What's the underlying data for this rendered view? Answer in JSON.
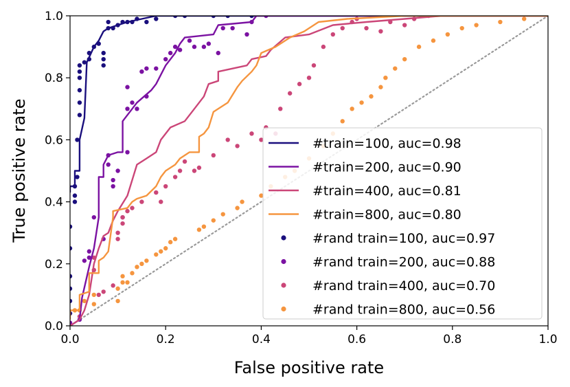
{
  "chart_data": {
    "type": "line",
    "title": "",
    "xlabel": "False positive rate",
    "ylabel": "True positive rate",
    "xlim": [
      0.0,
      1.0
    ],
    "ylim": [
      0.0,
      1.0
    ],
    "x_ticks": [
      "0.0",
      "0.2",
      "0.4",
      "0.6",
      "0.8",
      "1.0"
    ],
    "y_ticks": [
      "0.0",
      "0.2",
      "0.4",
      "0.6",
      "0.8",
      "1.0"
    ],
    "grid": false,
    "legend_position": "lower-right",
    "diagonal": {
      "style": "dotted",
      "color": "#999999",
      "points": [
        [
          0,
          0
        ],
        [
          1,
          1
        ]
      ]
    },
    "series": [
      {
        "name": "#train=100, auc=0.98",
        "kind": "line",
        "color": "#1a0f7d",
        "points": [
          [
            0.0,
            0.43
          ],
          [
            0.0,
            0.45
          ],
          [
            0.01,
            0.45
          ],
          [
            0.01,
            0.5
          ],
          [
            0.02,
            0.5
          ],
          [
            0.02,
            0.6
          ],
          [
            0.03,
            0.67
          ],
          [
            0.035,
            0.85
          ],
          [
            0.05,
            0.9
          ],
          [
            0.06,
            0.92
          ],
          [
            0.07,
            0.95
          ],
          [
            0.08,
            0.96
          ],
          [
            0.1,
            0.97
          ],
          [
            0.12,
            0.98
          ],
          [
            0.15,
            0.99
          ],
          [
            0.18,
            1.0
          ],
          [
            1.0,
            1.0
          ]
        ]
      },
      {
        "name": "#train=200, auc=0.90",
        "kind": "line",
        "color": "#7b12a2",
        "points": [
          [
            0.0,
            0.0
          ],
          [
            0.02,
            0.02
          ],
          [
            0.025,
            0.09
          ],
          [
            0.04,
            0.19
          ],
          [
            0.05,
            0.25
          ],
          [
            0.06,
            0.35
          ],
          [
            0.06,
            0.48
          ],
          [
            0.07,
            0.48
          ],
          [
            0.07,
            0.52
          ],
          [
            0.08,
            0.55
          ],
          [
            0.1,
            0.56
          ],
          [
            0.11,
            0.56
          ],
          [
            0.11,
            0.66
          ],
          [
            0.13,
            0.7
          ],
          [
            0.14,
            0.72
          ],
          [
            0.17,
            0.76
          ],
          [
            0.18,
            0.78
          ],
          [
            0.2,
            0.84
          ],
          [
            0.22,
            0.88
          ],
          [
            0.23,
            0.91
          ],
          [
            0.24,
            0.93
          ],
          [
            0.3,
            0.94
          ],
          [
            0.31,
            0.97
          ],
          [
            0.38,
            0.98
          ],
          [
            0.39,
            1.0
          ],
          [
            1.0,
            1.0
          ]
        ]
      },
      {
        "name": "#train=400, auc=0.81",
        "kind": "line",
        "color": "#cb4678",
        "points": [
          [
            0.0,
            0.0
          ],
          [
            0.02,
            0.02
          ],
          [
            0.03,
            0.05
          ],
          [
            0.04,
            0.1
          ],
          [
            0.05,
            0.2
          ],
          [
            0.06,
            0.25
          ],
          [
            0.07,
            0.29
          ],
          [
            0.08,
            0.3
          ],
          [
            0.09,
            0.34
          ],
          [
            0.1,
            0.37
          ],
          [
            0.12,
            0.42
          ],
          [
            0.14,
            0.52
          ],
          [
            0.16,
            0.54
          ],
          [
            0.18,
            0.56
          ],
          [
            0.19,
            0.6
          ],
          [
            0.21,
            0.64
          ],
          [
            0.24,
            0.66
          ],
          [
            0.26,
            0.7
          ],
          [
            0.28,
            0.74
          ],
          [
            0.29,
            0.78
          ],
          [
            0.31,
            0.79
          ],
          [
            0.31,
            0.82
          ],
          [
            0.34,
            0.83
          ],
          [
            0.37,
            0.84
          ],
          [
            0.38,
            0.86
          ],
          [
            0.41,
            0.87
          ],
          [
            0.42,
            0.89
          ],
          [
            0.45,
            0.93
          ],
          [
            0.5,
            0.94
          ],
          [
            0.55,
            0.97
          ],
          [
            0.62,
            0.98
          ],
          [
            0.7,
            0.99
          ],
          [
            0.78,
            1.0
          ],
          [
            1.0,
            1.0
          ]
        ]
      },
      {
        "name": "#train=800, auc=0.80",
        "kind": "line",
        "color": "#f5953f",
        "points": [
          [
            0.0,
            0.02
          ],
          [
            0.0,
            0.05
          ],
          [
            0.02,
            0.05
          ],
          [
            0.02,
            0.1
          ],
          [
            0.04,
            0.11
          ],
          [
            0.04,
            0.17
          ],
          [
            0.06,
            0.17
          ],
          [
            0.06,
            0.21
          ],
          [
            0.07,
            0.22
          ],
          [
            0.08,
            0.24
          ],
          [
            0.09,
            0.35
          ],
          [
            0.09,
            0.37
          ],
          [
            0.12,
            0.38
          ],
          [
            0.13,
            0.4
          ],
          [
            0.14,
            0.41
          ],
          [
            0.16,
            0.42
          ],
          [
            0.18,
            0.45
          ],
          [
            0.19,
            0.48
          ],
          [
            0.2,
            0.5
          ],
          [
            0.22,
            0.52
          ],
          [
            0.23,
            0.54
          ],
          [
            0.25,
            0.56
          ],
          [
            0.27,
            0.56
          ],
          [
            0.27,
            0.61
          ],
          [
            0.28,
            0.62
          ],
          [
            0.29,
            0.64
          ],
          [
            0.3,
            0.69
          ],
          [
            0.33,
            0.72
          ],
          [
            0.35,
            0.77
          ],
          [
            0.36,
            0.79
          ],
          [
            0.38,
            0.82
          ],
          [
            0.39,
            0.84
          ],
          [
            0.4,
            0.88
          ],
          [
            0.43,
            0.9
          ],
          [
            0.46,
            0.93
          ],
          [
            0.49,
            0.95
          ],
          [
            0.52,
            0.98
          ],
          [
            0.58,
            0.99
          ],
          [
            0.7,
            1.0
          ],
          [
            1.0,
            1.0
          ]
        ]
      },
      {
        "name": "#rand train=100, auc=0.97",
        "kind": "scatter",
        "color": "#1a0f7d",
        "points": [
          [
            0.0,
            0.0
          ],
          [
            0.0,
            0.04
          ],
          [
            0.0,
            0.08
          ],
          [
            0.0,
            0.12
          ],
          [
            0.0,
            0.16
          ],
          [
            0.0,
            0.25
          ],
          [
            0.0,
            0.32
          ],
          [
            0.01,
            0.4
          ],
          [
            0.01,
            0.42
          ],
          [
            0.01,
            0.45
          ],
          [
            0.015,
            0.48
          ],
          [
            0.015,
            0.6
          ],
          [
            0.02,
            0.68
          ],
          [
            0.02,
            0.72
          ],
          [
            0.02,
            0.76
          ],
          [
            0.02,
            0.8
          ],
          [
            0.02,
            0.82
          ],
          [
            0.02,
            0.84
          ],
          [
            0.03,
            0.85
          ],
          [
            0.04,
            0.86
          ],
          [
            0.04,
            0.88
          ],
          [
            0.05,
            0.9
          ],
          [
            0.06,
            0.91
          ],
          [
            0.07,
            0.84
          ],
          [
            0.07,
            0.86
          ],
          [
            0.07,
            0.88
          ],
          [
            0.08,
            0.96
          ],
          [
            0.08,
            0.98
          ],
          [
            0.09,
            0.96
          ],
          [
            0.1,
            0.97
          ],
          [
            0.11,
            0.98
          ],
          [
            0.12,
            0.98
          ],
          [
            0.13,
            0.98
          ],
          [
            0.14,
            0.99
          ],
          [
            0.16,
            0.98
          ],
          [
            0.18,
            0.99
          ],
          [
            0.22,
            1.0
          ],
          [
            0.24,
            1.0
          ],
          [
            0.3,
            1.0
          ],
          [
            0.33,
            1.0
          ],
          [
            0.38,
            1.0
          ]
        ]
      },
      {
        "name": "#rand train=200, auc=0.88",
        "kind": "scatter",
        "color": "#7b12a2",
        "points": [
          [
            0.0,
            0.01
          ],
          [
            0.02,
            0.02
          ],
          [
            0.03,
            0.21
          ],
          [
            0.04,
            0.22
          ],
          [
            0.04,
            0.24
          ],
          [
            0.05,
            0.35
          ],
          [
            0.07,
            0.28
          ],
          [
            0.08,
            0.52
          ],
          [
            0.08,
            0.55
          ],
          [
            0.09,
            0.45
          ],
          [
            0.09,
            0.47
          ],
          [
            0.1,
            0.5
          ],
          [
            0.11,
            0.35
          ],
          [
            0.12,
            0.56
          ],
          [
            0.12,
            0.7
          ],
          [
            0.12,
            0.77
          ],
          [
            0.13,
            0.72
          ],
          [
            0.14,
            0.7
          ],
          [
            0.15,
            0.82
          ],
          [
            0.16,
            0.74
          ],
          [
            0.16,
            0.83
          ],
          [
            0.18,
            0.83
          ],
          [
            0.2,
            0.86
          ],
          [
            0.21,
            0.88
          ],
          [
            0.22,
            0.9
          ],
          [
            0.23,
            0.89
          ],
          [
            0.25,
            0.92
          ],
          [
            0.26,
            0.9
          ],
          [
            0.28,
            0.9
          ],
          [
            0.29,
            0.91
          ],
          [
            0.31,
            0.88
          ],
          [
            0.32,
            0.96
          ],
          [
            0.34,
            0.96
          ],
          [
            0.37,
            0.94
          ],
          [
            0.38,
            0.98
          ],
          [
            0.41,
            1.0
          ]
        ]
      },
      {
        "name": "#rand train=400, auc=0.70",
        "kind": "scatter",
        "color": "#cb4678",
        "points": [
          [
            0.02,
            0.03
          ],
          [
            0.05,
            0.22
          ],
          [
            0.05,
            0.18
          ],
          [
            0.06,
            0.1
          ],
          [
            0.07,
            0.11
          ],
          [
            0.09,
            0.13
          ],
          [
            0.1,
            0.28
          ],
          [
            0.1,
            0.3
          ],
          [
            0.11,
            0.33
          ],
          [
            0.11,
            0.35
          ],
          [
            0.12,
            0.37
          ],
          [
            0.13,
            0.38
          ],
          [
            0.15,
            0.4
          ],
          [
            0.18,
            0.43
          ],
          [
            0.19,
            0.4
          ],
          [
            0.2,
            0.45
          ],
          [
            0.22,
            0.48
          ],
          [
            0.23,
            0.5
          ],
          [
            0.24,
            0.53
          ],
          [
            0.26,
            0.5
          ],
          [
            0.27,
            0.51
          ],
          [
            0.3,
            0.55
          ],
          [
            0.33,
            0.6
          ],
          [
            0.35,
            0.58
          ],
          [
            0.38,
            0.62
          ],
          [
            0.4,
            0.6
          ],
          [
            0.41,
            0.64
          ],
          [
            0.43,
            0.62
          ],
          [
            0.44,
            0.7
          ],
          [
            0.46,
            0.75
          ],
          [
            0.48,
            0.78
          ],
          [
            0.5,
            0.8
          ],
          [
            0.51,
            0.84
          ],
          [
            0.53,
            0.9
          ],
          [
            0.55,
            0.94
          ],
          [
            0.57,
            0.96
          ],
          [
            0.59,
            0.98
          ],
          [
            0.6,
            0.99
          ],
          [
            0.62,
            0.96
          ],
          [
            0.65,
            0.95
          ],
          [
            0.67,
            0.98
          ],
          [
            0.7,
            0.97
          ],
          [
            0.72,
            0.99
          ],
          [
            0.75,
            1.0
          ]
        ]
      },
      {
        "name": "#rand train=800, auc=0.56",
        "kind": "scatter",
        "color": "#f5953f",
        "points": [
          [
            0.01,
            0.05
          ],
          [
            0.02,
            0.05
          ],
          [
            0.03,
            0.08
          ],
          [
            0.05,
            0.07
          ],
          [
            0.05,
            0.1
          ],
          [
            0.1,
            0.08
          ],
          [
            0.1,
            0.12
          ],
          [
            0.11,
            0.14
          ],
          [
            0.11,
            0.16
          ],
          [
            0.12,
            0.14
          ],
          [
            0.13,
            0.17
          ],
          [
            0.14,
            0.19
          ],
          [
            0.15,
            0.2
          ],
          [
            0.16,
            0.21
          ],
          [
            0.18,
            0.23
          ],
          [
            0.19,
            0.24
          ],
          [
            0.2,
            0.25
          ],
          [
            0.21,
            0.27
          ],
          [
            0.22,
            0.28
          ],
          [
            0.27,
            0.31
          ],
          [
            0.28,
            0.32
          ],
          [
            0.3,
            0.34
          ],
          [
            0.32,
            0.36
          ],
          [
            0.35,
            0.38
          ],
          [
            0.36,
            0.4
          ],
          [
            0.4,
            0.42
          ],
          [
            0.42,
            0.45
          ],
          [
            0.45,
            0.48
          ],
          [
            0.47,
            0.5
          ],
          [
            0.5,
            0.54
          ],
          [
            0.53,
            0.58
          ],
          [
            0.55,
            0.62
          ],
          [
            0.57,
            0.66
          ],
          [
            0.59,
            0.7
          ],
          [
            0.61,
            0.72
          ],
          [
            0.63,
            0.74
          ],
          [
            0.65,
            0.77
          ],
          [
            0.66,
            0.8
          ],
          [
            0.68,
            0.83
          ],
          [
            0.7,
            0.86
          ],
          [
            0.73,
            0.9
          ],
          [
            0.76,
            0.92
          ],
          [
            0.79,
            0.94
          ],
          [
            0.82,
            0.96
          ],
          [
            0.85,
            0.97
          ],
          [
            0.9,
            0.98
          ],
          [
            0.95,
            0.99
          ]
        ]
      }
    ]
  }
}
